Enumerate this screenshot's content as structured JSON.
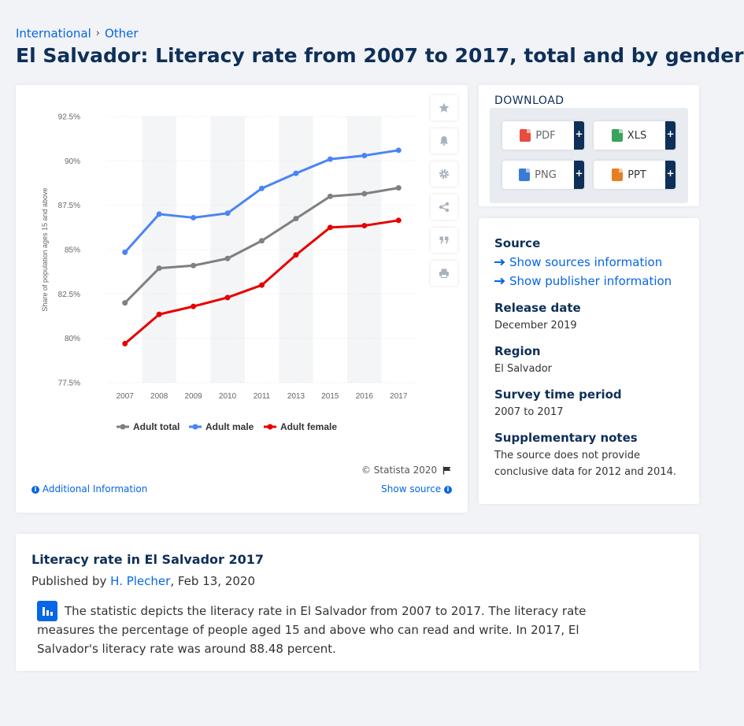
{
  "breadcrumb": {
    "items": [
      "International",
      "Other"
    ],
    "separator": "›"
  },
  "page_title": "El Salvador: Literacy rate from 2007 to 2017, total and by gender",
  "chart_data": {
    "type": "line",
    "title": "",
    "x": [
      "2007",
      "2008",
      "2009",
      "2010",
      "2011",
      "2013",
      "2015",
      "2016",
      "2017"
    ],
    "yticks": [
      "92.5%",
      "90%",
      "87.5%",
      "85%",
      "82.5%",
      "80%",
      "77.5%"
    ],
    "ylim": [
      77.5,
      92.5
    ],
    "ylabel": "Share of population ages 15 and above",
    "grid": "horizontal",
    "legend_position": "bottom",
    "series": [
      {
        "name": "Adult total",
        "color": "#808080",
        "values": [
          82.0,
          83.95,
          84.1,
          84.5,
          85.5,
          86.75,
          88.0,
          88.15,
          88.48
        ]
      },
      {
        "name": "Adult male",
        "color": "#4a84f5",
        "values": [
          84.85,
          87.0,
          86.8,
          87.05,
          88.45,
          89.3,
          90.1,
          90.3,
          90.6
        ]
      },
      {
        "name": "Adult female",
        "color": "#e60000",
        "values": [
          79.7,
          81.35,
          81.8,
          82.3,
          83.0,
          84.7,
          86.25,
          86.35,
          86.65
        ]
      }
    ]
  },
  "chart_footer": {
    "copyright": "© Statista 2020",
    "additional_info": "Additional Information",
    "show_source": "Show source"
  },
  "toolbar": [
    "star-icon",
    "bell-icon",
    "gear-icon",
    "share-icon",
    "quote-icon",
    "print-icon"
  ],
  "download": {
    "title": "DOWNLOAD",
    "buttons": [
      {
        "label": "PDF",
        "icon_color": "#e74c3c"
      },
      {
        "label": "XLS",
        "icon_color": "#3aa35b"
      },
      {
        "label": "PNG",
        "icon_color": "#3a7bd5"
      },
      {
        "label": "PPT",
        "icon_color": "#e67e22"
      }
    ],
    "plus": "+"
  },
  "info": {
    "source_label": "Source",
    "show_sources": "Show sources information",
    "show_publisher": "Show publisher information",
    "release_label": "Release date",
    "release_value": "December 2019",
    "region_label": "Region",
    "region_value": "El Salvador",
    "survey_label": "Survey time period",
    "survey_value": "2007 to 2017",
    "notes_label": "Supplementary notes",
    "notes_value": "The source does not provide conclusive data for 2012 and 2014."
  },
  "description": {
    "title": "Literacy rate in El Salvador 2017",
    "published_by": "Published by",
    "author": "H. Plecher",
    "date": ", Feb 13, 2020",
    "body": "The statistic depicts the literacy rate in El Salvador from 2007 to 2017. The literacy rate measures the percentage of people aged 15 and above who can read and write. In 2017, El Salvador's literacy rate was around 88.48 percent."
  },
  "colors": {
    "accent": "#0666e5",
    "title": "#0e2f58"
  }
}
